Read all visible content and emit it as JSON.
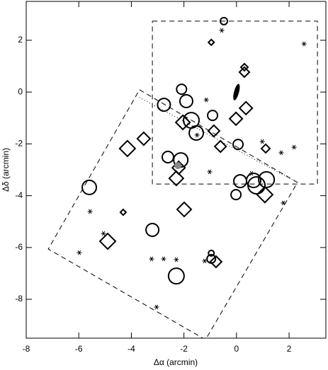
{
  "chart_data": {
    "type": "scatter",
    "x_label": "Δα (arcmin)",
    "y_label": "Δδ (arcmin)",
    "xlim": [
      -8,
      3.4
    ],
    "ylim": [
      -9.5,
      3.5
    ],
    "xticks": [
      -8,
      -6,
      -4,
      -2,
      0,
      2
    ],
    "yticks": [
      -8,
      -6,
      -4,
      -2,
      0,
      2
    ],
    "series": [
      {
        "marker": "circle",
        "color": "#000000",
        "x": [
          -0.48,
          -2.09,
          -2.76,
          -1.91,
          -1.72,
          -1.53,
          -0.91,
          0.06,
          -2.61,
          -2.12,
          -5.6,
          0.14,
          -0.02,
          0.65,
          0.76,
          1.14,
          -3.2,
          -0.96,
          -0.96,
          -2.29
        ],
        "values": [
          2.74,
          0.11,
          -0.49,
          -0.35,
          -1.09,
          -1.58,
          -0.9,
          -2.02,
          -2.51,
          -2.62,
          -3.68,
          -3.44,
          -3.96,
          -3.41,
          -3.6,
          -3.38,
          -5.32,
          -6.22,
          -6.44,
          -7.1
        ],
        "sizes": [
          5,
          7,
          9,
          9,
          11,
          10,
          7,
          7,
          8,
          10,
          10,
          9,
          7,
          10,
          12,
          11,
          9,
          4,
          6,
          11
        ]
      },
      {
        "marker": "diamond",
        "color": "#000000",
        "x": [
          -0.96,
          0.3,
          0.3,
          0.36,
          -0.02,
          -2.04,
          -0.86,
          -0.61,
          -3.53,
          -4.15,
          -2.2,
          -2.29,
          1.08,
          -4.31,
          -1.99,
          -4.9,
          -0.78,
          1.11
        ],
        "values": [
          1.92,
          0.96,
          0.77,
          -0.62,
          -1.03,
          -1.17,
          -1.5,
          -2.1,
          -1.8,
          -2.18,
          -2.92,
          -3.33,
          -3.96,
          -4.64,
          -4.53,
          -5.76,
          -6.55,
          -2.18
        ],
        "sizes": [
          4,
          5,
          7,
          9,
          9,
          10,
          8,
          8,
          9,
          11,
          9,
          10,
          11,
          4,
          10,
          11,
          8,
          6
        ]
      },
      {
        "marker": "asterisk",
        "color": "#000000",
        "x": [
          -0.56,
          2.57,
          -1.15,
          -1.5,
          0.98,
          1.7,
          2.19,
          -1.02,
          0.57,
          -5.57,
          -5.06,
          -5.98,
          -3.23,
          -2.77,
          -2.29,
          -1.21,
          -3.04,
          1.78
        ],
        "values": [
          2.38,
          1.86,
          -0.3,
          -1.66,
          -1.91,
          -2.34,
          -2.13,
          -3.08,
          -3.14,
          -4.61,
          -5.46,
          -6.2,
          -6.44,
          -6.44,
          -6.47,
          -6.52,
          -8.3,
          -4.28
        ]
      },
      {
        "marker": "dot",
        "color": "#888888",
        "x": [
          -2.23
        ],
        "values": [
          -2.84
        ],
        "sizes": [
          5
        ]
      },
      {
        "marker": "ellipse",
        "color": "#000000",
        "x": [
          0
        ],
        "values": [
          0
        ]
      }
    ],
    "regions": [
      {
        "style": "dashed",
        "x": [
          -3.2,
          3.08,
          3.08,
          -3.2,
          -3.2
        ],
        "y": [
          2.74,
          2.74,
          -3.55,
          -3.55,
          2.74
        ]
      },
      {
        "style": "dashed",
        "x": [
          -3.69,
          2.32,
          -1.18,
          -7.16,
          -3.69
        ],
        "y": [
          0.09,
          -3.49,
          -9.56,
          -6.06,
          0.09
        ]
      },
      {
        "style": "dotted",
        "x": [
          -3.69,
          2.32
        ],
        "y": [
          -0.21,
          -3.49
        ]
      }
    ]
  }
}
